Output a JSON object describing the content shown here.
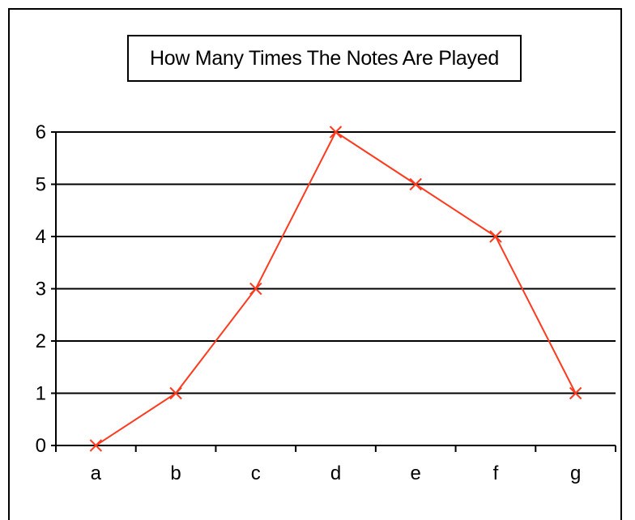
{
  "chart_data": {
    "type": "line",
    "title": "How Many Times The Notes Are Played",
    "categories": [
      "a",
      "b",
      "c",
      "d",
      "e",
      "f",
      "g"
    ],
    "values": [
      0,
      1,
      3,
      6,
      5,
      4,
      1
    ],
    "ylim": [
      0,
      6
    ],
    "yticks": [
      "0",
      "1",
      "2",
      "3",
      "4",
      "5",
      "6"
    ],
    "grid": true,
    "marker": "x",
    "line_color": "#ff3b1f"
  }
}
